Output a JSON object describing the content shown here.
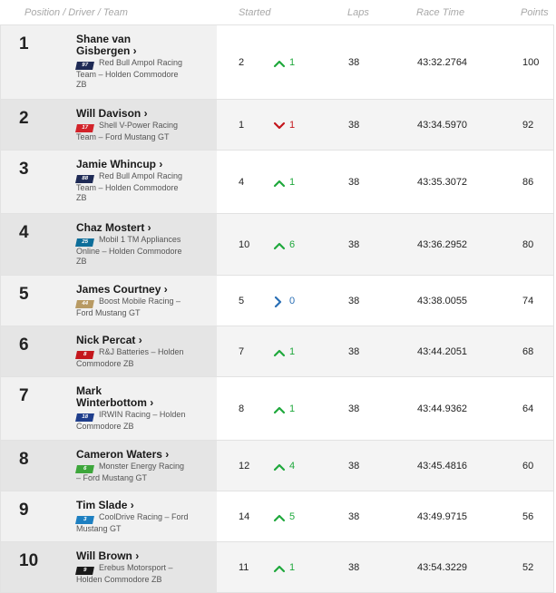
{
  "header": {
    "position": "Position / Driver / Team",
    "started": "Started",
    "laps": "Laps",
    "race_time": "Race Time",
    "points": "Points"
  },
  "colors": {
    "up": "#1fa83c",
    "down": "#c4161c",
    "same": "#2a6fb5"
  },
  "rows": [
    {
      "pos": "1",
      "driver": [
        "Shane van",
        "Gisbergen ›"
      ],
      "car": "97",
      "car_color": "#1e2a55",
      "team": [
        "Red Bull Ampol Racing",
        "Team – Holden Commodore",
        "ZB"
      ],
      "started": "2",
      "dir": "up",
      "change": "1",
      "laps": "38",
      "time": "43:32.2764",
      "points": "100"
    },
    {
      "pos": "2",
      "driver": [
        "Will Davison ›"
      ],
      "car": "17",
      "car_color": "#d2232a",
      "team": [
        "Shell V-Power Racing",
        "Team – Ford Mustang GT"
      ],
      "started": "1",
      "dir": "down",
      "change": "1",
      "laps": "38",
      "time": "43:34.5970",
      "points": "92"
    },
    {
      "pos": "3",
      "driver": [
        "Jamie Whincup ›"
      ],
      "car": "88",
      "car_color": "#1e2a55",
      "team": [
        "Red Bull Ampol Racing",
        "Team – Holden Commodore",
        "ZB"
      ],
      "started": "4",
      "dir": "up",
      "change": "1",
      "laps": "38",
      "time": "43:35.3072",
      "points": "86"
    },
    {
      "pos": "4",
      "driver": [
        "Chaz Mostert ›"
      ],
      "car": "25",
      "car_color": "#0d6e9a",
      "team": [
        "Mobil 1 TM Appliances",
        "Online – Holden Commodore",
        "ZB"
      ],
      "started": "10",
      "dir": "up",
      "change": "6",
      "laps": "38",
      "time": "43:36.2952",
      "points": "80"
    },
    {
      "pos": "5",
      "driver": [
        "James Courtney ›"
      ],
      "car": "44",
      "car_color": "#b89a63",
      "team": [
        "Boost Mobile Racing –",
        "Ford Mustang GT"
      ],
      "started": "5",
      "dir": "same",
      "change": "0",
      "laps": "38",
      "time": "43:38.0055",
      "points": "74"
    },
    {
      "pos": "6",
      "driver": [
        "Nick Percat ›"
      ],
      "car": "8",
      "car_color": "#c4161c",
      "team": [
        "R&J Batteries – Holden",
        "Commodore ZB"
      ],
      "started": "7",
      "dir": "up",
      "change": "1",
      "laps": "38",
      "time": "43:44.2051",
      "points": "68"
    },
    {
      "pos": "7",
      "driver": [
        "Mark",
        "Winterbottom ›"
      ],
      "car": "18",
      "car_color": "#1f3e8c",
      "team": [
        "IRWIN Racing – Holden",
        "Commodore ZB"
      ],
      "started": "8",
      "dir": "up",
      "change": "1",
      "laps": "38",
      "time": "43:44.9362",
      "points": "64"
    },
    {
      "pos": "8",
      "driver": [
        "Cameron Waters ›"
      ],
      "car": "6",
      "car_color": "#3da63b",
      "team": [
        "Monster Energy Racing",
        "– Ford Mustang GT"
      ],
      "started": "12",
      "dir": "up",
      "change": "4",
      "laps": "38",
      "time": "43:45.4816",
      "points": "60"
    },
    {
      "pos": "9",
      "driver": [
        "Tim Slade ›"
      ],
      "car": "3",
      "car_color": "#1d7fc1",
      "team": [
        "CoolDrive Racing – Ford",
        "Mustang GT"
      ],
      "started": "14",
      "dir": "up",
      "change": "5",
      "laps": "38",
      "time": "43:49.9715",
      "points": "56"
    },
    {
      "pos": "10",
      "driver": [
        "Will Brown ›"
      ],
      "car": "9",
      "car_color": "#1a1a1a",
      "team": [
        "Erebus Motorsport –",
        "Holden Commodore ZB"
      ],
      "started": "11",
      "dir": "up",
      "change": "1",
      "laps": "38",
      "time": "43:54.3229",
      "points": "52"
    }
  ]
}
